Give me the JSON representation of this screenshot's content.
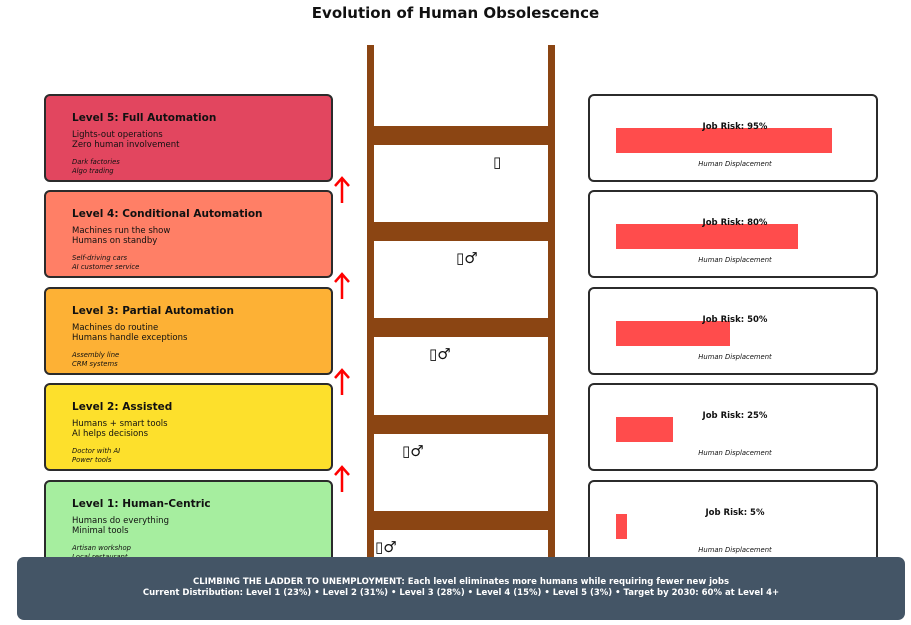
{
  "title": "Evolution of Human Obsolescence",
  "levels": [
    {
      "name": "Level 5: Full Automation",
      "desc1": "Lights-out operations",
      "desc2": "Zero human involvement",
      "ex1": "Dark factories",
      "ex2": "Algo trading",
      "color": "#e2465f"
    },
    {
      "name": "Level 4: Conditional Automation",
      "desc1": "Machines run the show",
      "desc2": "Humans on standby",
      "ex1": "Self-driving cars",
      "ex2": "AI customer service",
      "color": "#ff7f66"
    },
    {
      "name": "Level 3: Partial Automation",
      "desc1": "Machines do routine",
      "desc2": "Humans handle exceptions",
      "ex1": "Assembly line",
      "ex2": "CRM systems",
      "color": "#fdb135"
    },
    {
      "name": "Level 2: Assisted",
      "desc1": "Humans + smart tools",
      "desc2": "AI helps decisions",
      "ex1": "Doctor with AI",
      "ex2": "Power tools",
      "color": "#fde02c"
    },
    {
      "name": "Level 1: Human-Centric",
      "desc1": "Humans do everything",
      "desc2": "Minimal tools",
      "ex1": "Artisan workshop",
      "ex2": "Local restaurant",
      "color": "#a6ee9f"
    }
  ],
  "ladder_people": [
    "▯",
    "▯♂",
    "▯♂",
    "▯♂",
    "▯♂"
  ],
  "risks": [
    {
      "label": "Job Risk: 95%",
      "value": 95,
      "caption": "Human Displacement"
    },
    {
      "label": "Job Risk: 80%",
      "value": 80,
      "caption": "Human Displacement"
    },
    {
      "label": "Job Risk: 50%",
      "value": 50,
      "caption": "Human Displacement"
    },
    {
      "label": "Job Risk: 25%",
      "value": 25,
      "caption": "Human Displacement"
    },
    {
      "label": "Job Risk: 5%",
      "value": 5,
      "caption": "Human Displacement"
    }
  ],
  "footer": {
    "line1": "CLIMBING THE LADDER TO UNEMPLOYMENT: Each level eliminates more humans while requiring fewer new jobs",
    "line2": "Current Distribution: Level 1 (23%) • Level 2 (31%) • Level 3 (28%) • Level 4 (15%) • Level 5 (3%) • Target by 2030: 60% at Level 4+"
  },
  "colors": {
    "ladder": "#8b4513",
    "arrow": "#ff0000",
    "bar": "#ff4c4c",
    "footer": "#445566"
  }
}
